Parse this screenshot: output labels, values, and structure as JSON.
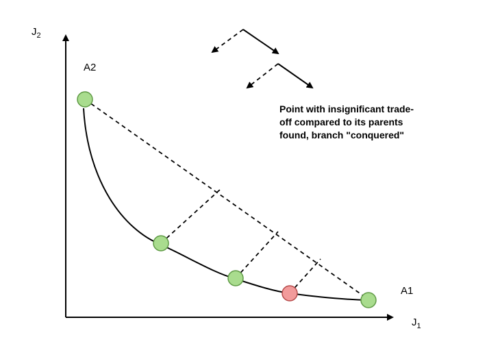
{
  "axes": {
    "y_label_main": "J",
    "y_label_sub": "2",
    "x_label_main": "J",
    "x_label_sub": "1"
  },
  "points": {
    "a2_label": "A2",
    "a1_label": "A1"
  },
  "annotation": {
    "line1": "Point with insignificant trade-",
    "line2": "off compared to its parents",
    "line3": "found, branch \"conquered\""
  },
  "colors": {
    "green_fill": "#a9dc8e",
    "green_stroke": "#5f9a45",
    "red_fill": "#f29b9b",
    "red_stroke": "#b54b4b"
  }
}
